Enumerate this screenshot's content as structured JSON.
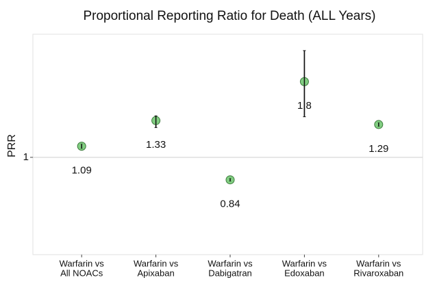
{
  "chart_data": {
    "type": "errorbar",
    "title": "Proportional Reporting Ratio for Death (ALL Years)",
    "y_label": "PRR",
    "categories": [
      [
        "Warfarin vs",
        "All NOACs"
      ],
      [
        "Warfarin vs",
        "Apixaban"
      ],
      [
        "Warfarin vs",
        "Dabigatran"
      ],
      [
        "Warfarin vs",
        "Edoxaban"
      ],
      [
        "Warfarin vs",
        "Rivaroxaban"
      ]
    ],
    "values": [
      1.09,
      1.33,
      0.84,
      1.8,
      1.29
    ],
    "lower": [
      1.07,
      1.26,
      0.83,
      1.37,
      1.27
    ],
    "upper": [
      1.11,
      1.38,
      0.85,
      2.29,
      1.31
    ],
    "color": "#6cc46c",
    "ylim": [
      0.47,
      2.6
    ],
    "yticks": [
      1
    ],
    "log_y": true,
    "grid": true
  }
}
